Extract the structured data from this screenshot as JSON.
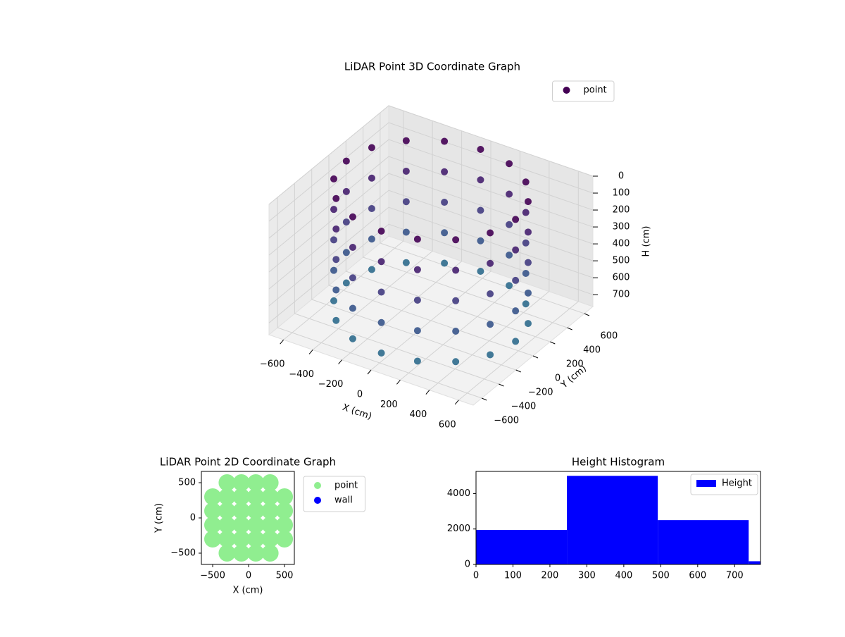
{
  "chart_data": [
    {
      "type": "scatter3d",
      "title": "LiDAR Point 3D Coordinate Graph",
      "xlabel": "X (cm)",
      "ylabel": "Y (cm)",
      "zlabel": "H (cm)",
      "xlim": [
        -700,
        700
      ],
      "ylim": [
        -700,
        700
      ],
      "zlim": [
        770,
        0
      ],
      "xticks": [
        {
          "value": -600,
          "label": "−600"
        },
        {
          "value": -400,
          "label": "−400"
        },
        {
          "value": -200,
          "label": "−200"
        },
        0,
        200,
        400,
        600
      ],
      "yticks": [
        {
          "value": -600,
          "label": "−600"
        },
        {
          "value": -400,
          "label": "−400"
        },
        {
          "value": -200,
          "label": "−200"
        },
        0,
        200,
        400,
        600
      ],
      "zticks": [
        0,
        100,
        200,
        300,
        400,
        500,
        600,
        700
      ],
      "grid": true,
      "legend": "upper right",
      "colormap": [
        "#440154",
        "#472d7b",
        "#3b528b",
        "#2c728e"
      ],
      "series": [
        {
          "name": "point",
          "color": "#440154",
          "x": [
            580,
            536,
            410,
            222,
            0,
            -222,
            -410,
            -536,
            -580,
            -536,
            -410,
            -222,
            0,
            222,
            410,
            536,
            580,
            536,
            410,
            222,
            0,
            -222,
            -410,
            -536,
            -580,
            -536,
            -410,
            -222,
            0,
            222,
            410,
            536,
            580,
            536,
            410,
            222,
            0,
            -222,
            -410,
            -536,
            -580,
            -536,
            -410,
            -222,
            0,
            222,
            410,
            536,
            580,
            536,
            410,
            222,
            0,
            -222,
            -410,
            -536,
            -580,
            -536,
            -410,
            -222,
            0,
            222,
            410,
            536,
            580,
            536,
            410,
            222,
            0,
            -222,
            -410,
            -536,
            -580,
            -536,
            -410,
            -222,
            0,
            222,
            410,
            536
          ],
          "y": [
            0,
            222,
            410,
            536,
            580,
            536,
            410,
            222,
            0,
            -222,
            -410,
            -536,
            -580,
            -536,
            -410,
            -222,
            0,
            222,
            410,
            536,
            580,
            536,
            410,
            222,
            0,
            -222,
            -410,
            -536,
            -580,
            -536,
            -410,
            -222,
            0,
            222,
            410,
            536,
            580,
            536,
            410,
            222,
            0,
            -222,
            -410,
            -536,
            -580,
            -536,
            -410,
            -222,
            0,
            222,
            410,
            536,
            580,
            536,
            410,
            222,
            0,
            -222,
            -410,
            -536,
            -580,
            -536,
            -410,
            -222,
            0,
            222,
            410,
            536,
            580,
            536,
            410,
            222,
            0,
            -222,
            -410,
            -536,
            -580,
            -536,
            -410,
            -222
          ],
          "z": [
            0,
            0,
            0,
            0,
            0,
            0,
            0,
            0,
            0,
            0,
            0,
            0,
            0,
            0,
            0,
            0,
            180,
            180,
            180,
            180,
            180,
            180,
            180,
            180,
            180,
            180,
            180,
            180,
            180,
            180,
            180,
            180,
            360,
            360,
            360,
            360,
            360,
            360,
            360,
            360,
            360,
            360,
            360,
            360,
            360,
            360,
            360,
            360,
            540,
            540,
            540,
            540,
            540,
            540,
            540,
            540,
            540,
            540,
            540,
            540,
            540,
            540,
            540,
            540,
            720,
            720,
            720,
            720,
            720,
            720,
            720,
            720,
            720,
            720,
            720,
            720,
            720,
            720,
            720,
            720
          ]
        }
      ]
    },
    {
      "type": "scatter",
      "title": "LiDAR Point 2D Coordinate Graph",
      "xlabel": "X (cm)",
      "ylabel": "Y (cm)",
      "xlim": [
        -657,
        637
      ],
      "ylim": [
        -660,
        660
      ],
      "xticks": [
        {
          "value": -500,
          "label": "−500"
        },
        0,
        500
      ],
      "yticks": [
        {
          "value": -500,
          "label": "−500"
        },
        0,
        500
      ],
      "legend": "outside right",
      "series": [
        {
          "name": "point",
          "color": "#90ee90",
          "x": [
            -300,
            -100,
            100,
            300,
            -500,
            -300,
            -100,
            100,
            300,
            500,
            -500,
            -300,
            -100,
            100,
            300,
            500,
            -500,
            -300,
            -100,
            100,
            300,
            500,
            -500,
            -300,
            -100,
            100,
            300,
            500,
            -300,
            -100,
            100,
            300
          ],
          "y": [
            -500,
            -500,
            -500,
            -500,
            -300,
            -300,
            -300,
            -300,
            -300,
            -300,
            -100,
            -100,
            -100,
            -100,
            -100,
            -100,
            100,
            100,
            100,
            100,
            100,
            100,
            300,
            300,
            300,
            300,
            300,
            300,
            500,
            500,
            500,
            500
          ]
        },
        {
          "name": "wall",
          "color": "#0000ff",
          "x": [],
          "y": []
        }
      ]
    },
    {
      "type": "histogram",
      "title": "Height Histogram",
      "xlim": [
        0,
        770
      ],
      "ylim": [
        0,
        5250
      ],
      "xticks": [
        0,
        100,
        200,
        300,
        400,
        500,
        600,
        700
      ],
      "yticks": [
        0,
        2000,
        4000
      ],
      "legend": "upper right",
      "bins": [
        0,
        246,
        492,
        738,
        984
      ],
      "series": [
        {
          "name": "Height",
          "color": "#0000ff",
          "values": [
            1950,
            5000,
            2500,
            180
          ]
        }
      ]
    }
  ]
}
